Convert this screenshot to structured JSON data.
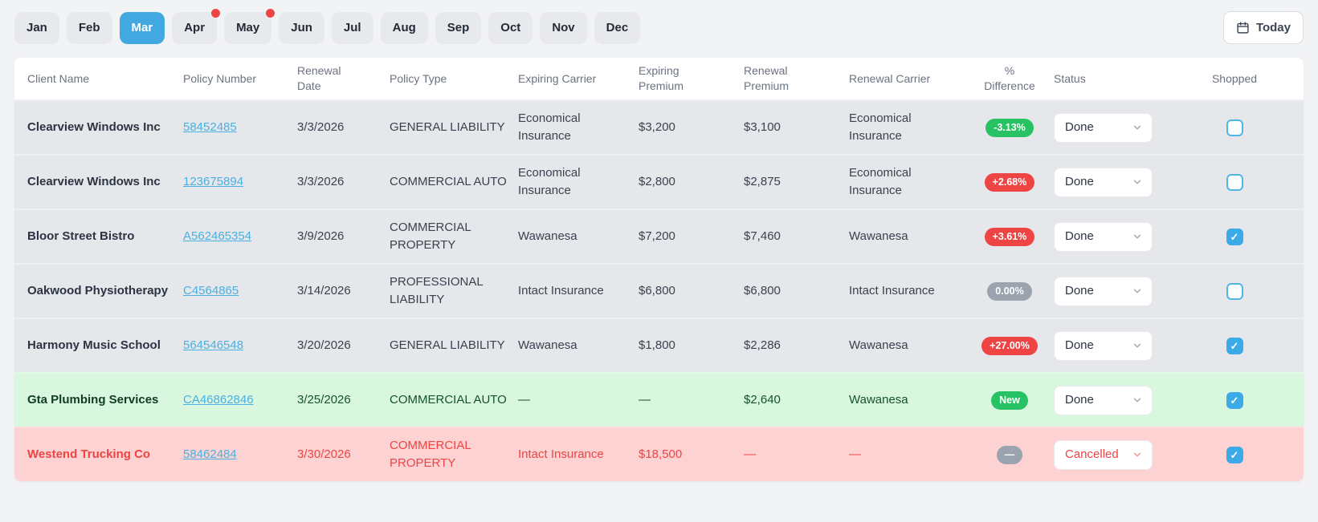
{
  "toolbar": {
    "months": [
      {
        "label": "Jan",
        "active": false,
        "dot": false
      },
      {
        "label": "Feb",
        "active": false,
        "dot": false
      },
      {
        "label": "Mar",
        "active": true,
        "dot": false
      },
      {
        "label": "Apr",
        "active": false,
        "dot": true
      },
      {
        "label": "May",
        "active": false,
        "dot": true
      },
      {
        "label": "Jun",
        "active": false,
        "dot": false
      },
      {
        "label": "Jul",
        "active": false,
        "dot": false
      },
      {
        "label": "Aug",
        "active": false,
        "dot": false
      },
      {
        "label": "Sep",
        "active": false,
        "dot": false
      },
      {
        "label": "Oct",
        "active": false,
        "dot": false
      },
      {
        "label": "Nov",
        "active": false,
        "dot": false
      },
      {
        "label": "Dec",
        "active": false,
        "dot": false
      }
    ],
    "today_button": {
      "label": "Today",
      "icon": "calendar-icon"
    }
  },
  "colors": {
    "active_month": "#41a9e0",
    "notification_dot": "#ef4444",
    "badge_green": "#27c263",
    "badge_red": "#ef4444",
    "badge_gray": "#9aa3ae",
    "row_new_bg": "#d9f6df",
    "row_cancelled_bg": "#fcd2d3",
    "link_blue": "#4ab1e2",
    "checkbox_blue": "#3caae6"
  },
  "table": {
    "columns": [
      {
        "key": "client",
        "label": "Client Name"
      },
      {
        "key": "policy_number",
        "label": "Policy Number"
      },
      {
        "key": "renewal_date",
        "label": "Renewal Date"
      },
      {
        "key": "policy_type",
        "label": "Policy Type"
      },
      {
        "key": "expiring_carrier",
        "label": "Expiring Carrier"
      },
      {
        "key": "expiring_premium",
        "label": "Expiring Premium"
      },
      {
        "key": "renewal_premium",
        "label": "Renewal Premium"
      },
      {
        "key": "renewal_carrier",
        "label": "Renewal Carrier"
      },
      {
        "key": "difference",
        "label": "% Difference"
      },
      {
        "key": "status",
        "label": "Status"
      },
      {
        "key": "shopped",
        "label": "Shopped"
      }
    ],
    "rows": [
      {
        "client": "Clearview Windows Inc",
        "policy_number": "58452485",
        "renewal_date": "3/3/2026",
        "policy_type": "GENERAL LIABILITY",
        "expiring_carrier": "Economical Insurance",
        "expiring_premium": "$3,200",
        "renewal_premium": "$3,100",
        "renewal_carrier": "Economical Insurance",
        "difference": "-3.13%",
        "difference_style": "green",
        "status": "Done",
        "shopped": false,
        "highlight": "none"
      },
      {
        "client": "Clearview Windows Inc",
        "policy_number": "123675894",
        "renewal_date": "3/3/2026",
        "policy_type": "COMMERCIAL AUTO",
        "expiring_carrier": "Economical Insurance",
        "expiring_premium": "$2,800",
        "renewal_premium": "$2,875",
        "renewal_carrier": "Economical Insurance",
        "difference": "+2.68%",
        "difference_style": "red",
        "status": "Done",
        "shopped": false,
        "highlight": "none"
      },
      {
        "client": "Bloor Street Bistro",
        "policy_number": "A562465354",
        "renewal_date": "3/9/2026",
        "policy_type": "COMMERCIAL PROPERTY",
        "expiring_carrier": "Wawanesa",
        "expiring_premium": "$7,200",
        "renewal_premium": "$7,460",
        "renewal_carrier": "Wawanesa",
        "difference": "+3.61%",
        "difference_style": "red",
        "status": "Done",
        "shopped": true,
        "highlight": "none"
      },
      {
        "client": "Oakwood Physiotherapy",
        "policy_number": "C4564865",
        "renewal_date": "3/14/2026",
        "policy_type": "PROFESSIONAL LIABILITY",
        "expiring_carrier": "Intact Insurance",
        "expiring_premium": "$6,800",
        "renewal_premium": "$6,800",
        "renewal_carrier": "Intact Insurance",
        "difference": "0.00%",
        "difference_style": "gray",
        "status": "Done",
        "shopped": false,
        "highlight": "none"
      },
      {
        "client": "Harmony Music School",
        "policy_number": "564546548",
        "renewal_date": "3/20/2026",
        "policy_type": "GENERAL LIABILITY",
        "expiring_carrier": "Wawanesa",
        "expiring_premium": "$1,800",
        "renewal_premium": "$2,286",
        "renewal_carrier": "Wawanesa",
        "difference": "+27.00%",
        "difference_style": "red",
        "status": "Done",
        "shopped": true,
        "highlight": "none"
      },
      {
        "client": "Gta Plumbing Services",
        "policy_number": "CA46862846",
        "renewal_date": "3/25/2026",
        "policy_type": "COMMERCIAL AUTO",
        "expiring_carrier": "—",
        "expiring_premium": "—",
        "renewal_premium": "$2,640",
        "renewal_carrier": "Wawanesa",
        "difference": "New",
        "difference_style": "green",
        "status": "Done",
        "shopped": true,
        "highlight": "green"
      },
      {
        "client": "Westend Trucking Co",
        "policy_number": "58462484",
        "renewal_date": "3/30/2026",
        "policy_type": "COMMERCIAL PROPERTY",
        "expiring_carrier": "Intact Insurance",
        "expiring_premium": "$18,500",
        "renewal_premium": "—",
        "renewal_carrier": "—",
        "difference": "—",
        "difference_style": "gray",
        "status": "Cancelled",
        "shopped": true,
        "highlight": "red"
      }
    ]
  }
}
